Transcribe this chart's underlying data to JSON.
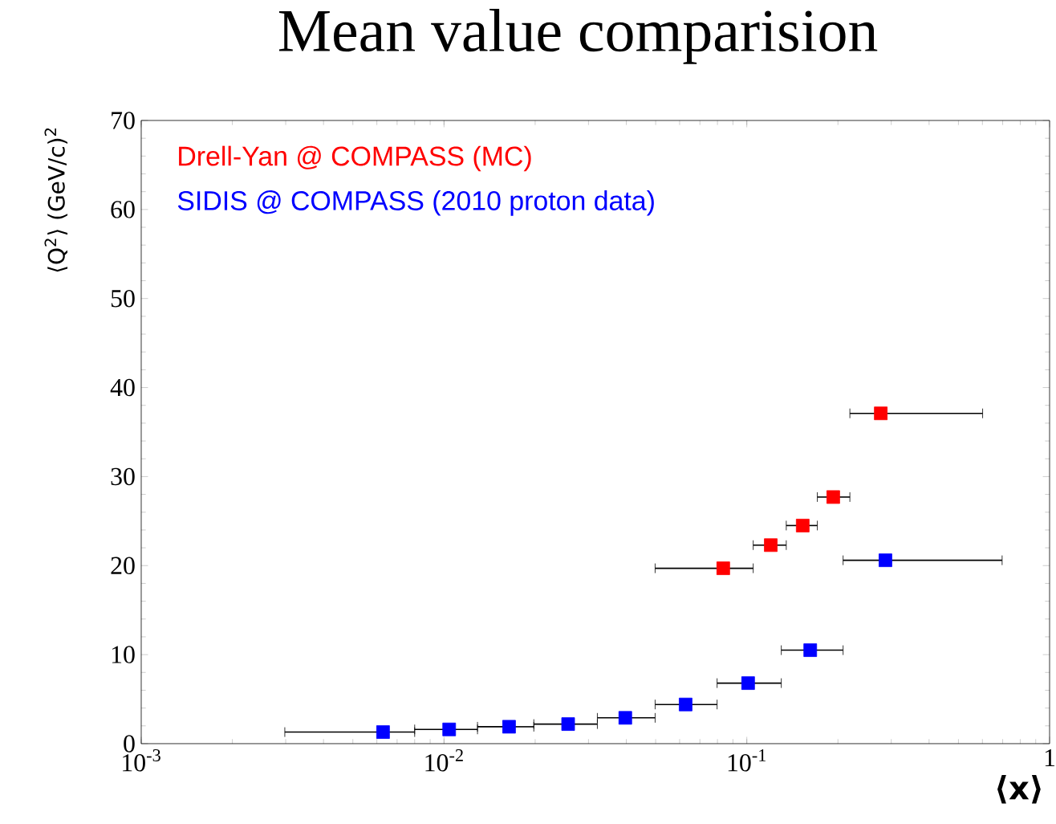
{
  "chart_data": {
    "type": "scatter",
    "title": "Mean value comparision",
    "xlabel": "⟨x⟩",
    "ylabel": "⟨Q$^{2}$⟩ (GeV/c)$^{2}$",
    "log": "x",
    "grid": false,
    "legend": "top left",
    "marker": "square",
    "xlim": [
      0.001,
      1
    ],
    "xticks": [
      {
        "value": 0.001,
        "label": "10$^{-3}$"
      },
      {
        "value": 0.01,
        "label": "10$^{-2}$"
      },
      {
        "value": 0.1,
        "label": "10$^{-1}$"
      },
      {
        "value": 1,
        "label": "1"
      }
    ],
    "ylim": [
      0,
      70
    ],
    "yticks": [
      0,
      10,
      20,
      30,
      40,
      50,
      60,
      70
    ],
    "series": [
      {
        "name": "Drell-Yan @ COMPASS (MC)",
        "color": "#ff0000",
        "x": [
          0.0836,
          0.12,
          0.153,
          0.193,
          0.277
        ],
        "values": [
          19.7,
          22.3,
          24.5,
          27.7,
          37.1
        ],
        "xerrors": [
          [
            0.0498,
            0.105
          ],
          [
            0.105,
            0.135
          ],
          [
            0.135,
            0.171
          ],
          [
            0.171,
            0.219
          ],
          [
            0.219,
            0.601
          ]
        ]
      },
      {
        "name": "SIDIS @ COMPASS (2010 proton data)",
        "color": "#0000ff",
        "x": [
          0.00629,
          0.0104,
          0.0164,
          0.0257,
          0.0397,
          0.0628,
          0.101,
          0.162,
          0.287
        ],
        "values": [
          1.3,
          1.6,
          1.9,
          2.2,
          2.9,
          4.4,
          6.8,
          10.5,
          20.6
        ],
        "xerrors": [
          [
            0.00298,
            0.008
          ],
          [
            0.008,
            0.0129
          ],
          [
            0.0129,
            0.0198
          ],
          [
            0.0198,
            0.0321
          ],
          [
            0.0321,
            0.0498
          ],
          [
            0.0498,
            0.0798
          ],
          [
            0.0798,
            0.13
          ],
          [
            0.13,
            0.208
          ],
          [
            0.208,
            0.697
          ]
        ]
      }
    ]
  }
}
